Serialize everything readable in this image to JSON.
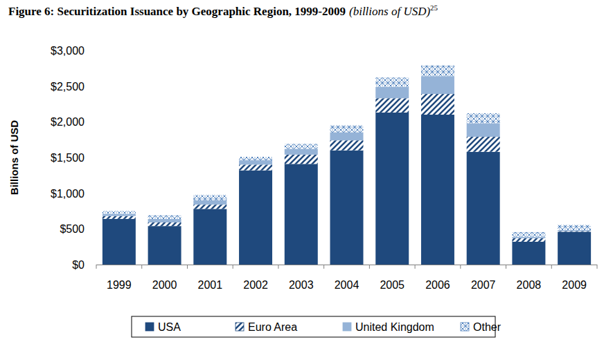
{
  "chart_data": {
    "type": "bar",
    "stacked": true,
    "grid": false,
    "title": "Figure 6: Securitization Issuance by Geographic Region, 1999-2009",
    "subtitle": "(billions of USD)",
    "annotations": [
      "25"
    ],
    "y_label": "Billions of USD",
    "categories": [
      "1999",
      "2000",
      "2001",
      "2002",
      "2003",
      "2004",
      "2005",
      "2006",
      "2007",
      "2008",
      "2009"
    ],
    "series": [
      {
        "name": "USA",
        "color": "#1f497d",
        "values": [
          640,
          540,
          780,
          1320,
          1410,
          1600,
          2130,
          2100,
          1580,
          320,
          460
        ]
      },
      {
        "name": "Euro Area",
        "color": "#1f497d",
        "values": [
          40,
          50,
          60,
          80,
          130,
          140,
          200,
          290,
          210,
          50,
          10
        ]
      },
      {
        "name": "United Kingdom",
        "color": "#95b3d7",
        "values": [
          30,
          50,
          60,
          60,
          80,
          110,
          160,
          250,
          190,
          20,
          15
        ]
      },
      {
        "name": "Other",
        "color": "#4f81bd",
        "values": [
          40,
          50,
          75,
          50,
          70,
          100,
          130,
          150,
          140,
          65,
          70
        ]
      }
    ],
    "ylim": [
      0,
      3000
    ],
    "yticks": [
      {
        "value": 0,
        "label": "$0"
      },
      {
        "value": 500,
        "label": "$500"
      },
      {
        "value": 1000,
        "label": "$1,000"
      },
      {
        "value": 1500,
        "label": "$1,500"
      },
      {
        "value": 2000,
        "label": "$2,000"
      },
      {
        "value": 2500,
        "label": "$2,500"
      },
      {
        "value": 3000,
        "label": "$3,000"
      }
    ],
    "legend": "bottom"
  }
}
